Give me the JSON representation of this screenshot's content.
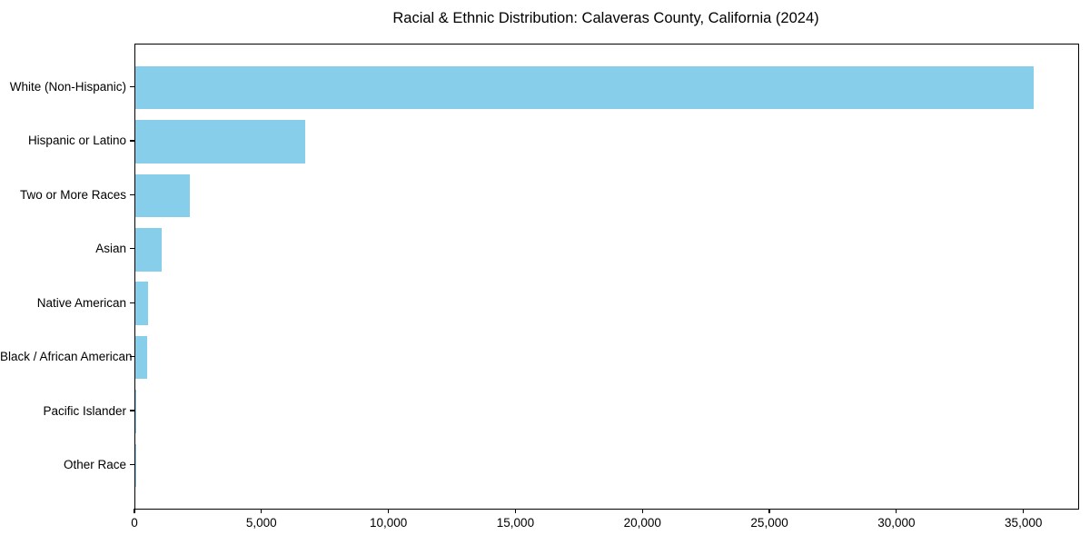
{
  "chart_data": {
    "type": "bar",
    "orientation": "horizontal",
    "title": "Racial & Ethnic Distribution: Calaveras County, California (2024)",
    "categories": [
      "White (Non-Hispanic)",
      "Hispanic or Latino",
      "Two or More Races",
      "Asian",
      "Native American",
      "Black / African American",
      "Pacific Islander",
      "Other Race"
    ],
    "values": [
      35350,
      6690,
      2150,
      1030,
      510,
      470,
      40,
      10
    ],
    "xlabel": "",
    "ylabel": "",
    "xlim": [
      0,
      37120
    ],
    "x_ticks": [
      0,
      5000,
      10000,
      15000,
      20000,
      25000,
      30000,
      35000
    ],
    "x_tick_labels": [
      "0",
      "5,000",
      "10,000",
      "15,000",
      "20,000",
      "25,000",
      "30,000",
      "35,000"
    ],
    "bar_color": "#87CEEB",
    "text_color": "#000000",
    "grid": false,
    "legend": "none"
  }
}
